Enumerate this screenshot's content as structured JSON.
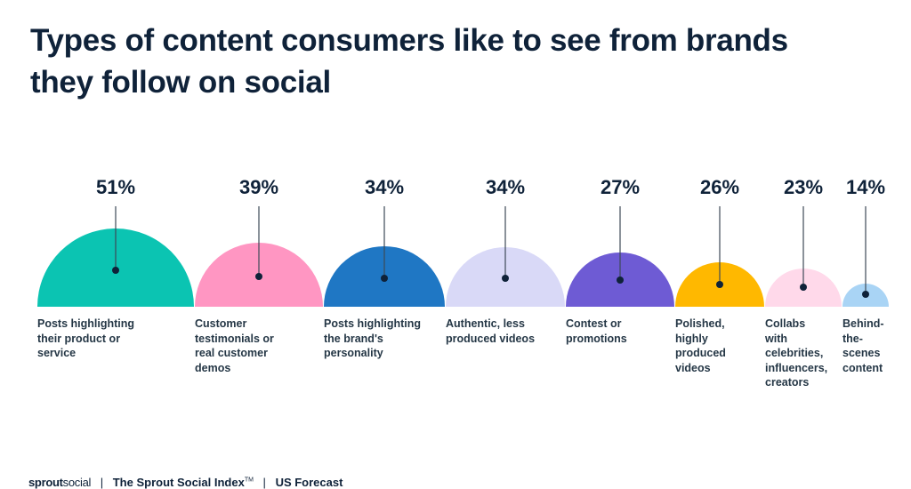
{
  "title": "Types of content consumers like to see from brands they follow on social",
  "footer": {
    "logo_bold": "sprout",
    "logo_light": "social",
    "separator": "|",
    "index": "The Sprout Social Index",
    "trademark": "TM",
    "region": "US Forecast"
  },
  "chart_data": {
    "type": "semicircle-bar",
    "unit": "%",
    "categories": [
      "Posts highlighting their product or service",
      "Customer testimonials or real customer demos",
      "Posts highlighting the brand's personality",
      "Authentic, less produced videos",
      "Contest or promotions",
      "Polished, highly produced videos",
      "Collabs with celebrities, influencers, creators",
      "Behind-the-scenes content"
    ],
    "label_lines": [
      "Posts highlighting\ntheir product or\nservice",
      "Customer\ntestimonials or\nreal customer\ndemos",
      "Posts highlighting\nthe brand's\npersonality",
      "Authentic, less\nproduced videos",
      "Contest or\npromotions",
      "Polished,\nhighly\nproduced\nvideos",
      "Collabs\nwith\ncelebrities,\ninfluencers,\ncreators",
      "Behind-\nthe-\nscenes\ncontent"
    ],
    "values": [
      51,
      39,
      34,
      34,
      27,
      26,
      23,
      14
    ],
    "value_labels": [
      "51%",
      "39%",
      "34%",
      "34%",
      "27%",
      "26%",
      "23%",
      "14%"
    ],
    "colors": [
      "#0bc4b2",
      "#ff96c2",
      "#1f77c4",
      "#d9d9f7",
      "#6e5bd4",
      "#ffb800",
      "#ffd9ea",
      "#a9d4f5"
    ],
    "grid": false,
    "legend": "none"
  }
}
